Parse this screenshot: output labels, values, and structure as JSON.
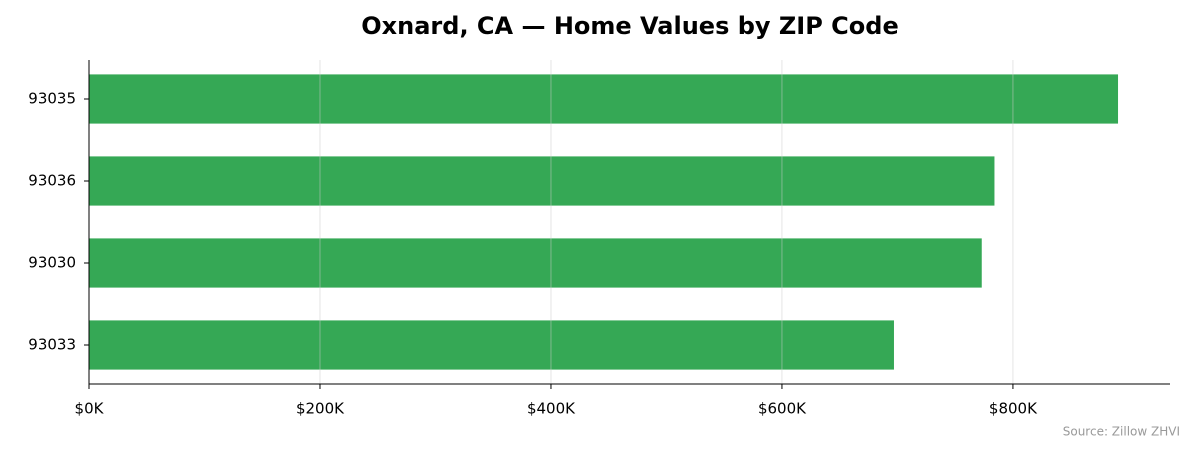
{
  "chart_data": {
    "type": "barh",
    "title": "Oxnard, CA — Home Values by ZIP Code",
    "categories": [
      "93035",
      "93036",
      "93030",
      "93033"
    ],
    "values": [
      891000,
      784000,
      773000,
      697000
    ],
    "color": "#35a855",
    "xlim": [
      0,
      936000
    ],
    "xticks": [
      {
        "value": 0,
        "label": "$0K"
      },
      {
        "value": 200000,
        "label": "$200K"
      },
      {
        "value": 400000,
        "label": "$400K"
      },
      {
        "value": 600000,
        "label": "$600K"
      },
      {
        "value": 800000,
        "label": "$800K"
      }
    ],
    "grid": true,
    "source": "Source: Zillow ZHVI"
  }
}
